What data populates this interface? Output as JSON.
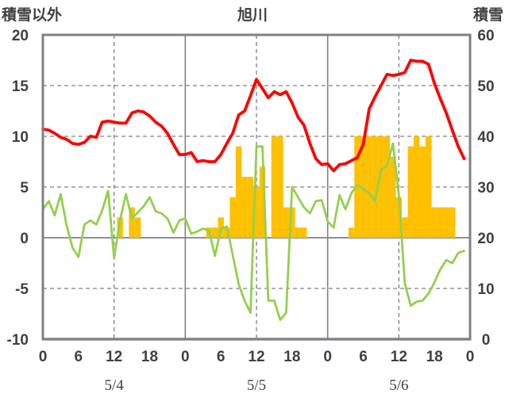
{
  "chart_data": {
    "type": "line",
    "title": "旭川",
    "left_axis_label": "積雪以外",
    "right_axis_label": "積雪",
    "ylim_left": [
      -10,
      20
    ],
    "yticks_left": [
      20,
      15,
      10,
      5,
      0,
      -5,
      -10
    ],
    "ylim_right": [
      0,
      60
    ],
    "yticks_right": [
      60,
      50,
      40,
      30,
      20,
      10,
      0
    ],
    "x_hours_total": 72,
    "x_tick_labels": [
      "0",
      "6",
      "12",
      "18",
      "0",
      "6",
      "12",
      "18",
      "0",
      "6",
      "12",
      "18",
      "0"
    ],
    "dates": [
      "5/4",
      "5/5",
      "5/6"
    ],
    "colors": {
      "temperature": "#ff0000",
      "green_series": "#92d050",
      "bars": "#ffc000",
      "baseline": "#7030a0",
      "frame": "#808080"
    },
    "series": [
      {
        "kind": "line",
        "axis": "left",
        "color": "#ff0000",
        "x": [
          0,
          1,
          2,
          3,
          4,
          5,
          6,
          7,
          8,
          9,
          10,
          11,
          12,
          13,
          14,
          15,
          16,
          17,
          18,
          19,
          20,
          21,
          22,
          23,
          24,
          25,
          26,
          27,
          28,
          29,
          30,
          31,
          32,
          33,
          34,
          35,
          36,
          37,
          38,
          39,
          40,
          41,
          42,
          43,
          44,
          45,
          46,
          47,
          48,
          49,
          50,
          51,
          52,
          53,
          54,
          55,
          56,
          57,
          58,
          59,
          60,
          61,
          62,
          63,
          64,
          65,
          66,
          67,
          68,
          69,
          70,
          71
        ],
        "values": [
          10.7,
          10.6,
          10.3,
          9.9,
          9.7,
          9.3,
          9.2,
          9.4,
          10.0,
          9.9,
          11.4,
          11.5,
          11.4,
          11.3,
          11.3,
          12.3,
          12.5,
          12.4,
          12.0,
          11.4,
          11.0,
          10.3,
          9.2,
          8.2,
          8.2,
          8.4,
          7.5,
          7.6,
          7.5,
          7.5,
          8.2,
          9.3,
          10.3,
          12.1,
          12.5,
          14.0,
          15.6,
          14.7,
          13.8,
          14.4,
          14.1,
          14.4,
          13.3,
          11.9,
          11.1,
          9.3,
          7.8,
          7.2,
          7.3,
          6.6,
          7.2,
          7.3,
          7.6,
          7.9,
          9.2,
          12.7,
          13.9,
          15.0,
          16.1,
          16.0,
          16.1,
          16.3,
          17.5,
          17.4,
          17.4,
          17.1,
          15.2,
          13.7,
          12.3,
          10.6,
          9.0,
          7.8
        ]
      },
      {
        "kind": "line",
        "axis": "left",
        "color": "#92d050",
        "x": [
          0,
          1,
          2,
          3,
          4,
          5,
          6,
          7,
          8,
          9,
          10,
          11,
          12,
          13,
          14,
          15,
          16,
          17,
          18,
          19,
          20,
          21,
          22,
          23,
          24,
          25,
          26,
          27,
          28,
          29,
          30,
          31,
          32,
          33,
          34,
          35,
          36,
          37,
          38,
          39,
          40,
          41,
          42,
          43,
          44,
          45,
          46,
          47,
          48,
          49,
          50,
          51,
          52,
          53,
          54,
          55,
          56,
          57,
          58,
          59,
          60,
          61,
          62,
          63,
          64,
          65,
          66,
          67,
          68,
          69,
          70,
          71
        ],
        "values": [
          2.8,
          3.6,
          2.2,
          4.3,
          1.2,
          -1.0,
          -1.9,
          1.3,
          1.7,
          1.3,
          2.7,
          4.6,
          -2.0,
          1.7,
          4.3,
          1.9,
          2.5,
          3.1,
          4.0,
          2.6,
          2.4,
          1.9,
          0.5,
          1.7,
          1.9,
          0.4,
          0.6,
          0.9,
          0.7,
          -1.8,
          0.9,
          1.1,
          -1.7,
          -4.6,
          -6.2,
          -7.4,
          9.0,
          9.0,
          -6.2,
          -6.2,
          -8.1,
          -7.4,
          5.0,
          4.0,
          3.0,
          2.4,
          3.6,
          3.7,
          1.6,
          1.0,
          4.2,
          2.8,
          4.4,
          5.2,
          4.8,
          4.4,
          3.6,
          6.7,
          7.1,
          9.3,
          4.2,
          -4.5,
          -6.7,
          -6.3,
          -6.2,
          -5.5,
          -4.4,
          -3.1,
          -2.2,
          -2.5,
          -1.5,
          -1.3
        ]
      },
      {
        "kind": "bar",
        "axis": "left",
        "color": "#ffc000",
        "x": [
          13,
          15,
          16,
          28,
          29,
          30,
          31,
          32,
          33,
          34,
          35,
          36,
          37,
          39,
          40,
          41,
          42,
          43,
          44,
          52,
          53,
          54,
          55,
          56,
          57,
          58,
          59,
          60,
          61,
          62,
          63,
          64,
          65,
          66,
          67,
          68,
          69
        ],
        "values": [
          2,
          3,
          2,
          1,
          1,
          2,
          1,
          4,
          9,
          6,
          6,
          5,
          7,
          10,
          10,
          3,
          3,
          1,
          1,
          1,
          10,
          10,
          10,
          10,
          10,
          10,
          8,
          4,
          2,
          9,
          10,
          9,
          10,
          3,
          3,
          3,
          3
        ]
      },
      {
        "kind": "line",
        "axis": "left",
        "color": "#7030a0",
        "x": [
          0,
          72
        ],
        "values": [
          -10,
          -10
        ]
      }
    ]
  }
}
